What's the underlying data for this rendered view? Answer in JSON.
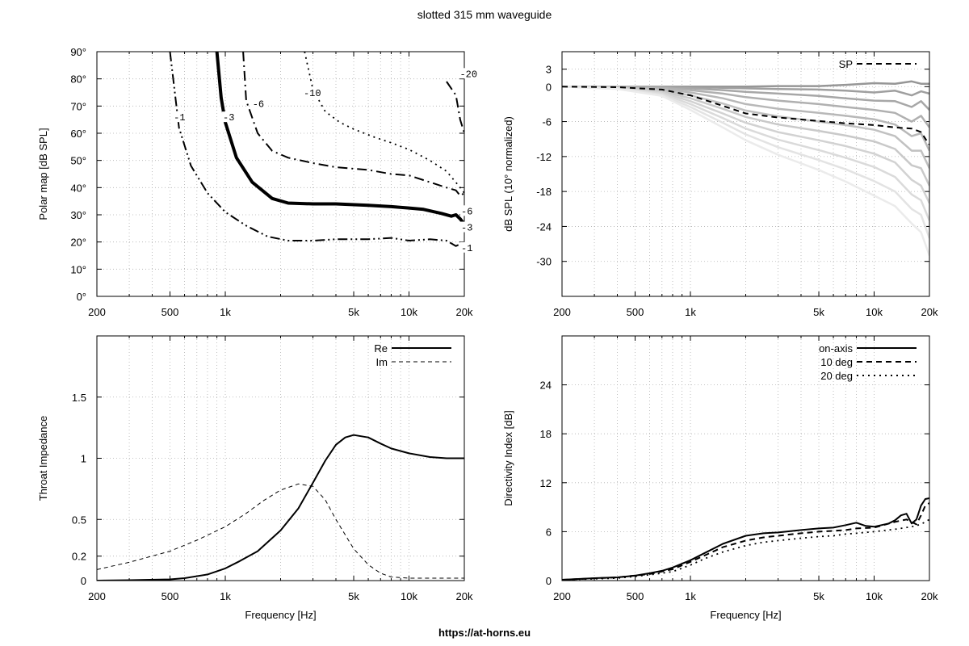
{
  "figure": {
    "title": "slotted 315 mm waveguide",
    "footer": "https://at-horns.eu"
  },
  "chart_data": [
    {
      "type": "line",
      "subtype": "contour-polar-map",
      "ylabel": "Polar map [dB SPL]",
      "xlabel": "",
      "xscale": "log",
      "xlim": [
        200,
        20000
      ],
      "ylim": [
        0,
        90
      ],
      "xticks": [
        200,
        500,
        1000,
        5000,
        10000,
        20000
      ],
      "xticklabels": [
        "200",
        "500",
        "1k",
        "5k",
        "10k",
        "20k"
      ],
      "yticks": [
        0,
        10,
        20,
        30,
        40,
        50,
        60,
        70,
        80,
        90
      ],
      "yticklabels": [
        "0°",
        "10°",
        "20°",
        "30°",
        "40°",
        "50°",
        "60°",
        "70°",
        "80°",
        "90°"
      ],
      "grid": true,
      "series": [
        {
          "name": "-1",
          "style": "dash-dot-dot",
          "x": [
            500,
            560,
            650,
            800,
            1000,
            1300,
            1700,
            2200,
            3000,
            4000,
            6000,
            8000,
            10000,
            13000,
            16000,
            18000,
            20000
          ],
          "y": [
            90,
            62,
            48,
            38,
            31,
            26,
            22,
            20.5,
            20.5,
            21,
            21,
            21.5,
            20.5,
            21,
            20.5,
            18.5,
            20
          ]
        },
        {
          "name": "-3",
          "style": "thick-solid",
          "x": [
            900,
            950,
            1000,
            1150,
            1400,
            1800,
            2200,
            3000,
            4000,
            6000,
            8000,
            10000,
            12000,
            15000,
            17000,
            18000,
            19000,
            20000
          ],
          "y": [
            90,
            73,
            64,
            51,
            42,
            36,
            34.3,
            34,
            34,
            33.5,
            33,
            32.5,
            32,
            30.5,
            29.5,
            30,
            28.5,
            26.5
          ]
        },
        {
          "name": "-6",
          "style": "dash-dot",
          "x": [
            1250,
            1300,
            1500,
            1800,
            2200,
            3000,
            4000,
            6000,
            8000,
            10000,
            13000,
            16000,
            18000,
            19000,
            20000
          ],
          "y": [
            90,
            72,
            60,
            53.5,
            51,
            49,
            47.5,
            46.5,
            45,
            44.5,
            42,
            40,
            39,
            37,
            38
          ]
        },
        {
          "name": "-10",
          "style": "dotted",
          "x": [
            2700,
            3000,
            3500,
            4200,
            5000,
            6500,
            8000,
            10000,
            13000,
            16000,
            19000,
            20000
          ],
          "y": [
            90,
            76,
            68,
            64,
            61.5,
            58.5,
            56.5,
            54,
            50,
            46,
            40,
            38
          ]
        },
        {
          "name": "-20",
          "style": "dash-dot",
          "x": [
            16000,
            18000,
            19000,
            20000
          ],
          "y": [
            79,
            74,
            65,
            60
          ]
        }
      ],
      "annotations": [
        "-1",
        "-3",
        "-6",
        "-10",
        "-20",
        "-6",
        "-3",
        "-1"
      ]
    },
    {
      "type": "line",
      "ylabel": "dB SPL (10° normalized)",
      "xlabel": "",
      "xscale": "log",
      "xlim": [
        200,
        20000
      ],
      "ylim": [
        -36,
        6
      ],
      "xticks": [
        200,
        500,
        1000,
        5000,
        10000,
        20000
      ],
      "xticklabels": [
        "200",
        "500",
        "1k",
        "5k",
        "10k",
        "20k"
      ],
      "yticks": [
        3,
        0,
        -6,
        -12,
        -18,
        -24,
        -30
      ],
      "yticklabels": [
        "3",
        "0",
        "-6",
        "-12",
        "-18",
        "-24",
        "-30"
      ],
      "grid": true,
      "legend": {
        "position": "top-right",
        "entries": [
          "SP"
        ]
      },
      "x": [
        200,
        400,
        700,
        1000,
        1500,
        2000,
        3000,
        5000,
        7000,
        10000,
        13000,
        16000,
        18000,
        20000
      ],
      "polar_curves": [
        [
          0,
          0,
          0,
          0,
          0,
          0,
          0.1,
          0.1,
          0.3,
          0.6,
          0.5,
          0.9,
          0.5,
          0.5
        ],
        [
          0,
          0,
          0,
          -0.1,
          -0.2,
          -0.3,
          -0.4,
          -0.5,
          -0.7,
          -1,
          -0.7,
          -1.5,
          -0.8,
          -1.2
        ],
        [
          0,
          0,
          -0.1,
          -0.3,
          -0.6,
          -0.9,
          -1.2,
          -1.6,
          -2,
          -2.4,
          -2.5,
          -3.5,
          -2.5,
          -4
        ],
        [
          0,
          0,
          -0.2,
          -0.6,
          -1.2,
          -1.8,
          -2.4,
          -3,
          -3.5,
          -4,
          -4.5,
          -6,
          -5,
          -7
        ],
        [
          0,
          -0.1,
          -0.4,
          -1,
          -2,
          -3,
          -3.8,
          -4.5,
          -5,
          -5.6,
          -6.5,
          -8.5,
          -8,
          -11
        ],
        [
          0,
          -0.1,
          -0.6,
          -1.5,
          -2.9,
          -4.1,
          -5.1,
          -6,
          -6.6,
          -7.4,
          -8.5,
          -11,
          -11,
          -14
        ],
        [
          0,
          -0.2,
          -0.8,
          -2,
          -3.8,
          -5.2,
          -6.5,
          -7.6,
          -8.4,
          -9.4,
          -10.7,
          -13.5,
          -14,
          -17
        ],
        [
          0,
          -0.2,
          -1,
          -2.5,
          -4.6,
          -6.2,
          -7.8,
          -9.2,
          -10.2,
          -11.5,
          -13,
          -16,
          -17,
          -20
        ],
        [
          0,
          -0.3,
          -1.2,
          -3,
          -5.4,
          -7.2,
          -9.1,
          -10.9,
          -12.2,
          -13.8,
          -15.5,
          -18.5,
          -19.5,
          -23
        ],
        [
          0,
          -0.3,
          -1.4,
          -3.5,
          -6.2,
          -8.2,
          -10.4,
          -12.6,
          -14.2,
          -16.2,
          -18,
          -21,
          -22,
          -26
        ],
        [
          0,
          -0.4,
          -1.6,
          -4,
          -7,
          -9.2,
          -11.7,
          -14.3,
          -16.3,
          -18.7,
          -20.5,
          -23.5,
          -25,
          -29
        ]
      ],
      "series": [
        {
          "name": "SP",
          "style": "dashed",
          "x": [
            200,
            400,
            700,
            1000,
            1500,
            2000,
            3000,
            5000,
            7000,
            10000,
            13000,
            16000,
            18000,
            20000
          ],
          "y": [
            0,
            -0.1,
            -0.5,
            -1.5,
            -3.3,
            -4.6,
            -5.3,
            -5.9,
            -6.3,
            -6.6,
            -7,
            -7.2,
            -7.8,
            -10
          ]
        }
      ]
    },
    {
      "type": "line",
      "ylabel": "Throat Impedance",
      "xlabel": "Frequency [Hz]",
      "xscale": "log",
      "xlim": [
        200,
        20000
      ],
      "ylim": [
        0,
        2
      ],
      "xticks": [
        200,
        500,
        1000,
        5000,
        10000,
        20000
      ],
      "xticklabels": [
        "200",
        "500",
        "1k",
        "5k",
        "10k",
        "20k"
      ],
      "yticks": [
        0,
        0.2,
        0.5,
        1,
        1.5
      ],
      "yticklabels": [
        "0",
        "0.2",
        "0.5",
        "1",
        "1.5"
      ],
      "grid": true,
      "legend": {
        "position": "top-right",
        "entries": [
          "Re",
          "Im"
        ]
      },
      "series": [
        {
          "name": "Re",
          "style": "solid",
          "x": [
            200,
            300,
            500,
            600,
            800,
            1000,
            1200,
            1500,
            2000,
            2500,
            3000,
            3500,
            4000,
            4500,
            5000,
            6000,
            7000,
            8000,
            10000,
            13000,
            16000,
            20000
          ],
          "y": [
            0,
            0.003,
            0.01,
            0.02,
            0.05,
            0.1,
            0.16,
            0.24,
            0.41,
            0.59,
            0.8,
            0.98,
            1.11,
            1.17,
            1.19,
            1.17,
            1.12,
            1.08,
            1.04,
            1.01,
            1.0,
            1.0
          ]
        },
        {
          "name": "Im",
          "style": "dashed",
          "x": [
            200,
            300,
            500,
            700,
            1000,
            1300,
            1600,
            2000,
            2500,
            3000,
            3500,
            4000,
            5000,
            6000,
            7000,
            8000,
            10000,
            15000,
            20000
          ],
          "y": [
            0.09,
            0.15,
            0.24,
            0.33,
            0.44,
            0.55,
            0.65,
            0.74,
            0.79,
            0.77,
            0.66,
            0.5,
            0.26,
            0.13,
            0.06,
            0.03,
            0.02,
            0.02,
            0.02
          ]
        }
      ]
    },
    {
      "type": "line",
      "ylabel": "Directivity Index [dB]",
      "xlabel": "Frequency [Hz]",
      "xscale": "log",
      "xlim": [
        200,
        20000
      ],
      "ylim": [
        0,
        30
      ],
      "xticks": [
        200,
        500,
        1000,
        5000,
        10000,
        20000
      ],
      "xticklabels": [
        "200",
        "500",
        "1k",
        "5k",
        "10k",
        "20k"
      ],
      "yticks": [
        0,
        6,
        12,
        18,
        24
      ],
      "yticklabels": [
        "0",
        "6",
        "12",
        "18",
        "24"
      ],
      "grid": true,
      "legend": {
        "position": "top-right",
        "entries": [
          "on-axis",
          "10 deg",
          "20 deg"
        ]
      },
      "series": [
        {
          "name": "on-axis",
          "style": "solid",
          "x": [
            200,
            300,
            400,
            500,
            600,
            700,
            800,
            1000,
            1200,
            1500,
            2000,
            2500,
            3000,
            4000,
            5000,
            6000,
            7000,
            8000,
            9000,
            10000,
            12000,
            13000,
            14000,
            15000,
            16000,
            17000,
            18000,
            19000,
            20000
          ],
          "y": [
            0.1,
            0.3,
            0.4,
            0.6,
            0.9,
            1.2,
            1.6,
            2.5,
            3.4,
            4.5,
            5.5,
            5.8,
            5.9,
            6.2,
            6.4,
            6.5,
            6.8,
            7.1,
            6.7,
            6.6,
            7.0,
            7.4,
            8.0,
            8.2,
            7.0,
            7.5,
            9.2,
            10.0,
            10.1
          ]
        },
        {
          "name": "10 deg",
          "style": "dashed",
          "x": [
            200,
            400,
            600,
            800,
            1000,
            1200,
            1500,
            2000,
            2500,
            3000,
            4000,
            5000,
            6000,
            7000,
            8000,
            10000,
            13000,
            15000,
            17000,
            18000,
            19000,
            20000
          ],
          "y": [
            0.1,
            0.4,
            0.8,
            1.4,
            2.3,
            3.1,
            4.1,
            4.9,
            5.3,
            5.5,
            5.8,
            6.0,
            6.1,
            6.2,
            6.4,
            6.5,
            7.2,
            7.5,
            6.9,
            8.0,
            9.2,
            9.5
          ]
        },
        {
          "name": "20 deg",
          "style": "dotted",
          "x": [
            200,
            400,
            600,
            800,
            1000,
            1200,
            1500,
            2000,
            2500,
            3000,
            4000,
            5000,
            6000,
            7000,
            8000,
            10000,
            13000,
            16000,
            18000,
            20000
          ],
          "y": [
            0.1,
            0.3,
            0.7,
            1.1,
            1.9,
            2.7,
            3.5,
            4.3,
            4.7,
            4.9,
            5.2,
            5.4,
            5.5,
            5.7,
            5.8,
            6.0,
            6.3,
            6.6,
            6.9,
            7.5
          ]
        }
      ]
    }
  ]
}
